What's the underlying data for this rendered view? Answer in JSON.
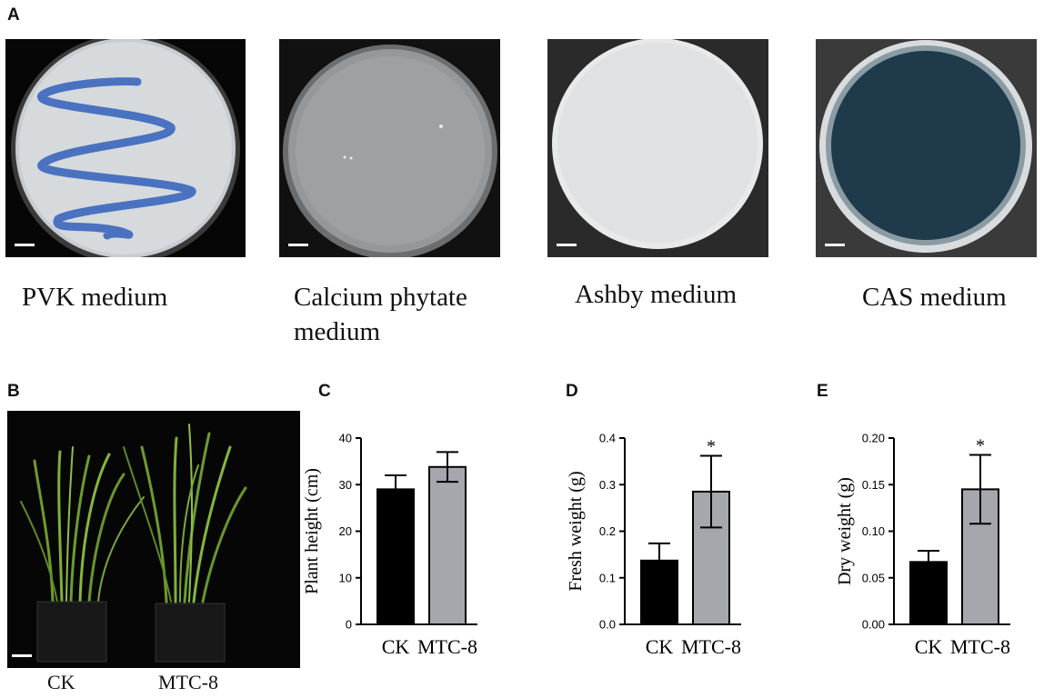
{
  "panels": {
    "a": "A",
    "b": "B",
    "c": "C",
    "d": "D",
    "e": "E"
  },
  "media": [
    {
      "caption": "PVK medium",
      "icon": "plate-photo-pvk"
    },
    {
      "caption": "Calcium phytate medium",
      "icon": "plate-photo-calcium-phytate"
    },
    {
      "caption": "Ashby medium",
      "icon": "plate-photo-ashby"
    },
    {
      "caption": "CAS medium",
      "icon": "plate-photo-cas"
    }
  ],
  "plant_photo": {
    "left_label": "CK",
    "right_label": "MTC-8",
    "icon": "rice-plants-photo"
  },
  "colors": {
    "ck_bar": "#000000",
    "mtc_bar": "#a6a6ad",
    "pvk_streak": "#4a72c0",
    "cas_medium": "#1f3a4a"
  },
  "chart_data": [
    {
      "type": "bar",
      "panel": "C",
      "categories": [
        "CK",
        "MTC-8"
      ],
      "values": [
        29,
        33.8
      ],
      "errors": [
        3,
        3.2
      ],
      "significance": [
        "",
        ""
      ],
      "ylabel": "Plant height (cm)",
      "ylim": [
        0,
        40
      ],
      "yticks": [
        "0",
        "10",
        "20",
        "30",
        "40"
      ],
      "grid": false
    },
    {
      "type": "bar",
      "panel": "D",
      "categories": [
        "CK",
        "MTC-8"
      ],
      "values": [
        0.137,
        0.285
      ],
      "errors": [
        0.037,
        0.077
      ],
      "significance": [
        "",
        "*"
      ],
      "ylabel": "Fresh weight (g)",
      "ylim": [
        0,
        0.4
      ],
      "yticks": [
        "0.0",
        "0.1",
        "0.2",
        "0.3",
        "0.4"
      ],
      "grid": false
    },
    {
      "type": "bar",
      "panel": "E",
      "categories": [
        "CK",
        "MTC-8"
      ],
      "values": [
        0.067,
        0.145
      ],
      "errors": [
        0.012,
        0.037
      ],
      "significance": [
        "",
        "*"
      ],
      "ylabel": "Dry weight (g)",
      "ylim": [
        0,
        0.2
      ],
      "yticks": [
        "0.00",
        "0.05",
        "0.10",
        "0.15",
        "0.20"
      ],
      "grid": false
    }
  ]
}
